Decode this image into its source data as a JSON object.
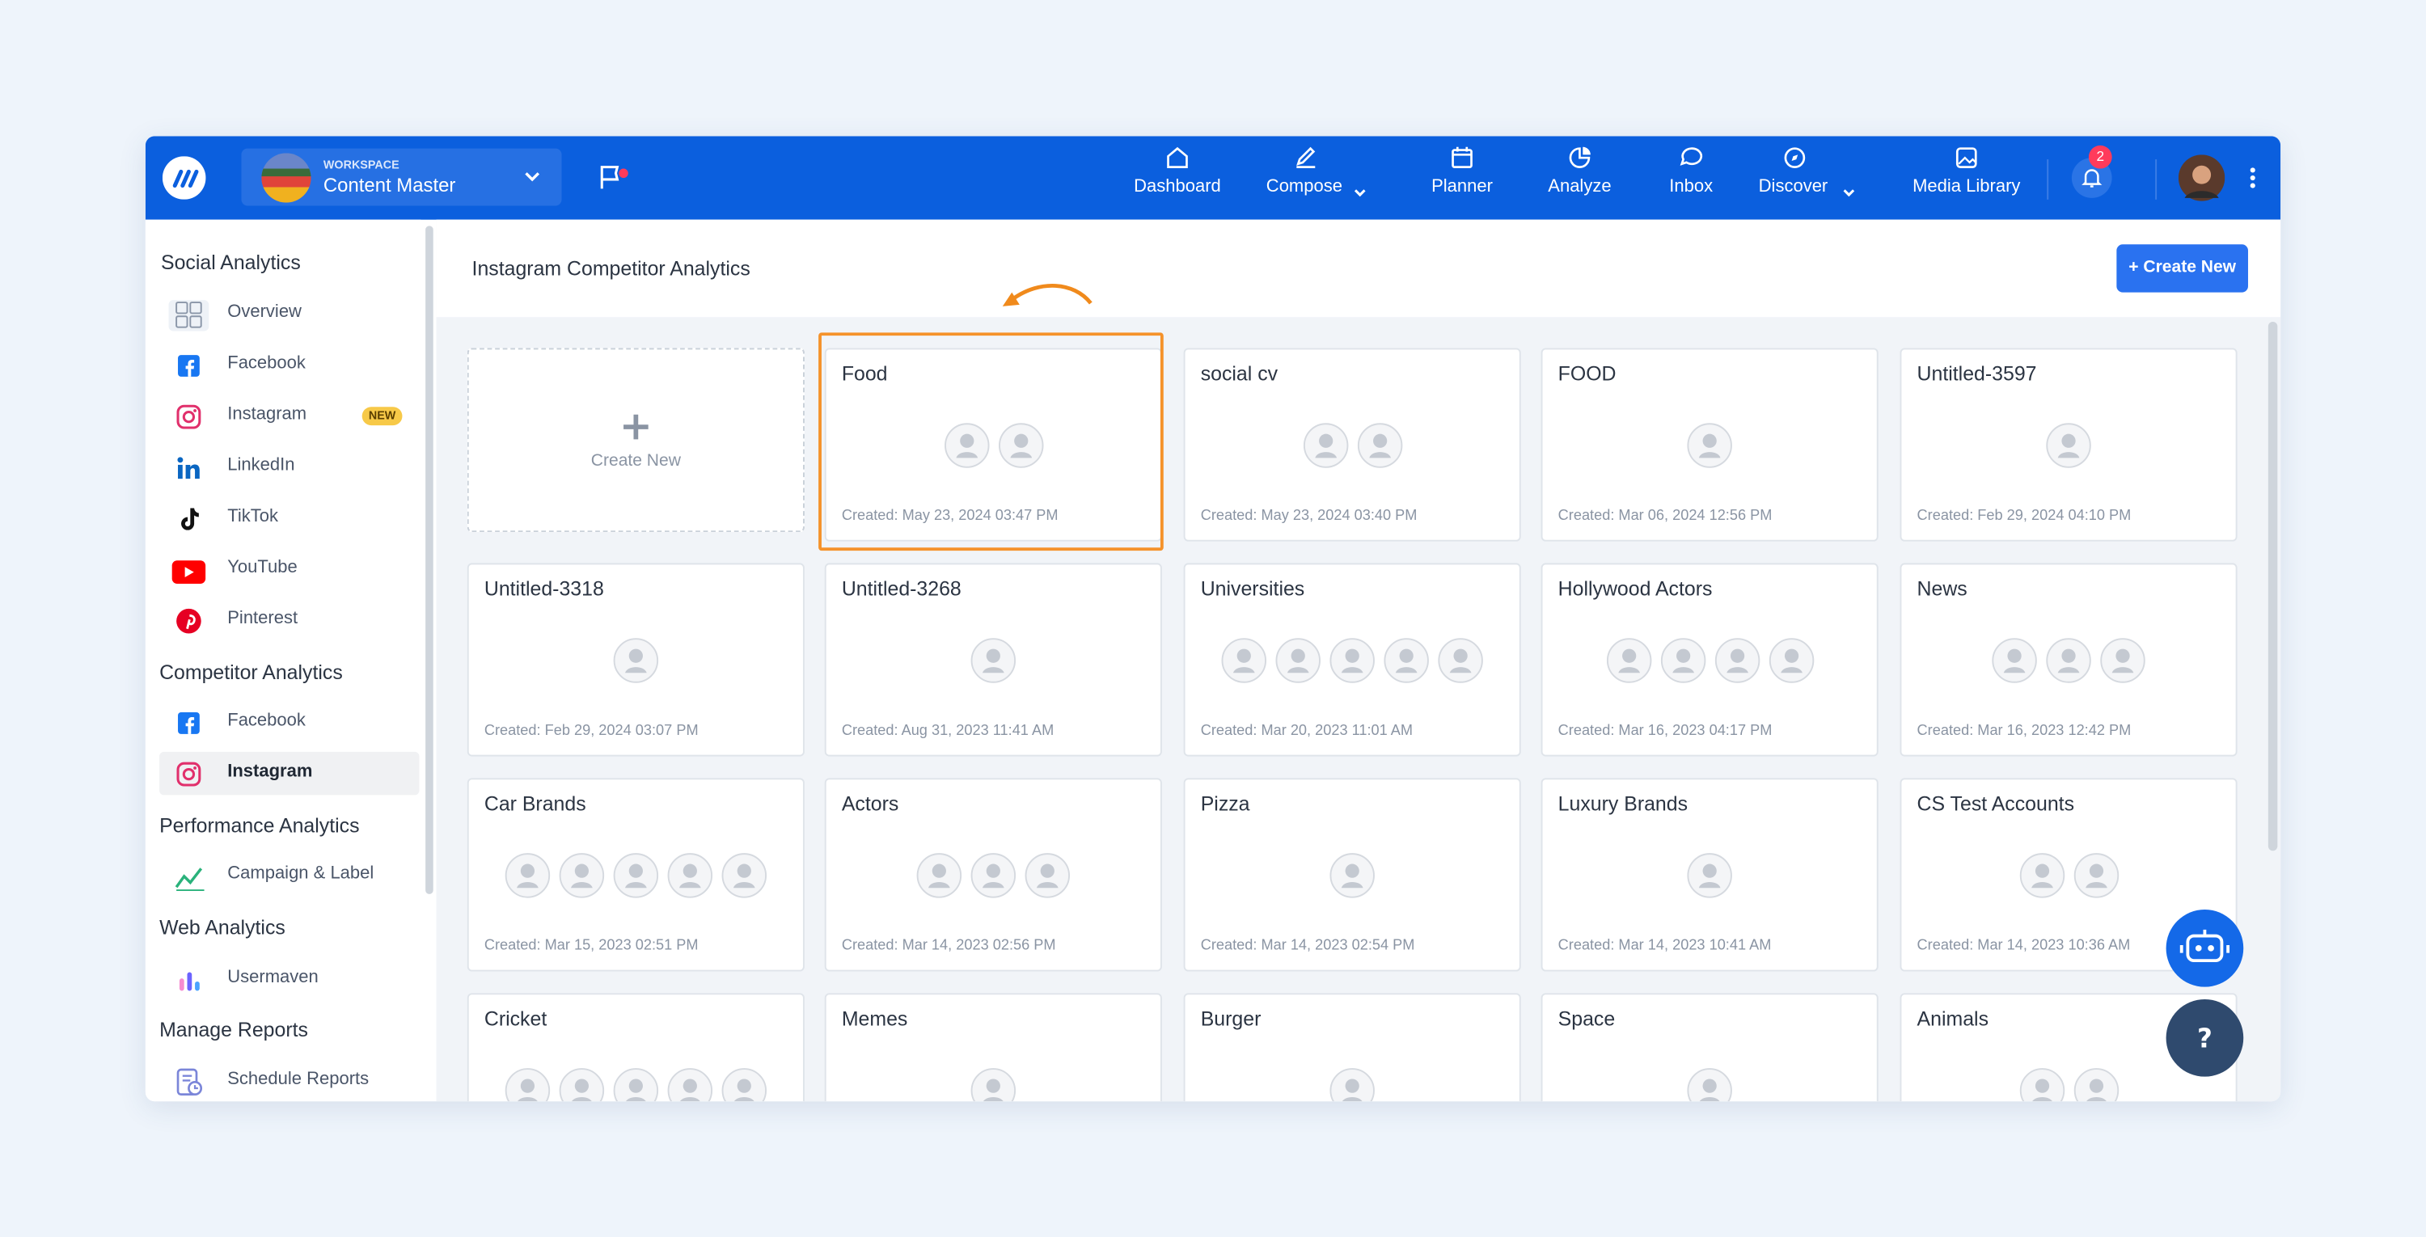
{
  "workspace": {
    "label": "WORKSPACE",
    "name": "Content Master"
  },
  "nav": [
    {
      "label": "Dashboard"
    },
    {
      "label": "Compose",
      "dropdown": true
    },
    {
      "label": "Planner"
    },
    {
      "label": "Analyze",
      "active": true
    },
    {
      "label": "Inbox"
    },
    {
      "label": "Discover",
      "dropdown": true
    },
    {
      "label": "Media Library"
    }
  ],
  "notifications": "2",
  "sidebar": [
    {
      "heading": "Social Analytics",
      "items": [
        {
          "label": "Overview"
        },
        {
          "label": "Facebook"
        },
        {
          "label": "Instagram",
          "badge": "NEW"
        },
        {
          "label": "LinkedIn"
        },
        {
          "label": "TikTok"
        },
        {
          "label": "YouTube"
        },
        {
          "label": "Pinterest"
        }
      ]
    },
    {
      "heading": "Competitor Analytics",
      "items": [
        {
          "label": "Facebook"
        },
        {
          "label": "Instagram",
          "active": true
        }
      ]
    },
    {
      "heading": "Performance Analytics",
      "items": [
        {
          "label": "Campaign & Label"
        }
      ]
    },
    {
      "heading": "Web Analytics",
      "items": [
        {
          "label": "Usermaven"
        }
      ]
    },
    {
      "heading": "Manage Reports",
      "items": [
        {
          "label": "Schedule Reports"
        }
      ]
    }
  ],
  "header": {
    "title": "Instagram Competitor Analytics",
    "button": "+ Create New"
  },
  "create_card": {
    "label": "Create New"
  },
  "cards": [
    {
      "title": "Food",
      "avatar_count": 2,
      "created": "Created: May 23, 2024 03:47 PM",
      "highlighted": true
    },
    {
      "title": "social cv",
      "avatar_count": 2,
      "created": "Created: May 23, 2024 03:40 PM"
    },
    {
      "title": "FOOD",
      "avatar_count": 1,
      "created": "Created: Mar 06, 2024 12:56 PM"
    },
    {
      "title": "Untitled-3597",
      "avatar_count": 1,
      "created": "Created: Feb 29, 2024 04:10 PM"
    },
    {
      "title": "Untitled-3318",
      "avatar_count": 1,
      "created": "Created: Feb 29, 2024 03:07 PM"
    },
    {
      "title": "Untitled-3268",
      "avatar_count": 1,
      "created": "Created: Aug 31, 2023 11:41 AM"
    },
    {
      "title": "Universities",
      "avatar_count": 5,
      "created": "Created: Mar 20, 2023 11:01 AM"
    },
    {
      "title": "Hollywood Actors",
      "avatar_count": 4,
      "created": "Created: Mar 16, 2023 04:17 PM"
    },
    {
      "title": "News",
      "avatar_count": 3,
      "created": "Created: Mar 16, 2023 12:42 PM"
    },
    {
      "title": "Car Brands",
      "avatar_count": 5,
      "created": "Created: Mar 15, 2023 02:51 PM"
    },
    {
      "title": "Actors",
      "avatar_count": 3,
      "created": "Created: Mar 14, 2023 02:56 PM"
    },
    {
      "title": "Pizza",
      "avatar_count": 1,
      "created": "Created: Mar 14, 2023 02:54 PM"
    },
    {
      "title": "Luxury Brands",
      "avatar_count": 1,
      "created": "Created: Mar 14, 2023 10:41 AM"
    },
    {
      "title": "CS Test Accounts",
      "avatar_count": 2,
      "created": "Created: Mar 14, 2023 10:36 AM"
    },
    {
      "title": "Cricket",
      "avatar_count": 5
    },
    {
      "title": "Memes",
      "avatar_count": 1
    },
    {
      "title": "Burger",
      "avatar_count": 1
    },
    {
      "title": "Space",
      "avatar_count": 1
    },
    {
      "title": "Animals",
      "avatar_count": 2
    }
  ]
}
